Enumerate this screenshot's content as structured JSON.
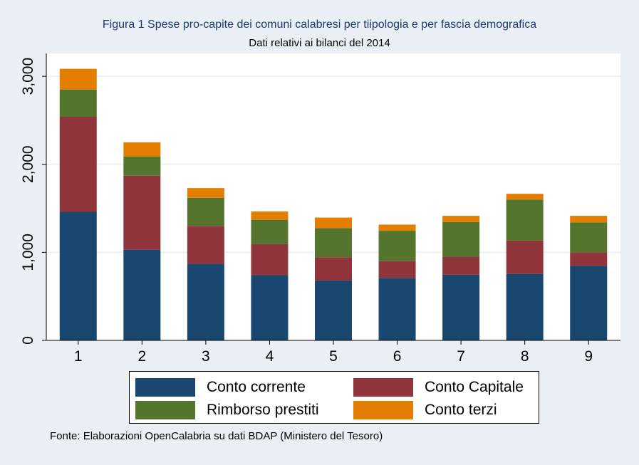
{
  "chart_data": {
    "type": "bar",
    "stacked": true,
    "title": "Figura 1 Spese pro-capite dei comuni calabresi per tiipologia e per fascia demografica",
    "subtitle": "Dati relativi ai bilanci del 2014",
    "categories": [
      "1",
      "2",
      "3",
      "4",
      "5",
      "6",
      "7",
      "8",
      "9"
    ],
    "series": [
      {
        "name": "Conto corrente",
        "color": "#1a476f",
        "values": [
          1460,
          1030,
          870,
          740,
          680,
          710,
          745,
          755,
          845
        ]
      },
      {
        "name": "Conto Capitale",
        "color": "#90353b",
        "values": [
          1080,
          840,
          430,
          355,
          265,
          190,
          205,
          380,
          155
        ]
      },
      {
        "name": "Rimborso prestiti",
        "color": "#55752f",
        "values": [
          310,
          220,
          320,
          275,
          330,
          345,
          395,
          465,
          340
        ]
      },
      {
        "name": "Conto terzi",
        "color": "#e37e00",
        "values": [
          235,
          160,
          110,
          95,
          120,
          70,
          70,
          65,
          75
        ]
      }
    ],
    "yticks": [
      "0",
      "1,000",
      "2,000",
      "3,000"
    ],
    "ytick_values": [
      0,
      1000,
      2000,
      3000
    ],
    "ylim": [
      0,
      3260
    ],
    "xlabel": "",
    "ylabel": "",
    "grid": true,
    "legend_position": "bottom"
  },
  "source_note": "Fonte: Elaborazioni OpenCalabria su dati BDAP (Ministero del Tesoro)"
}
